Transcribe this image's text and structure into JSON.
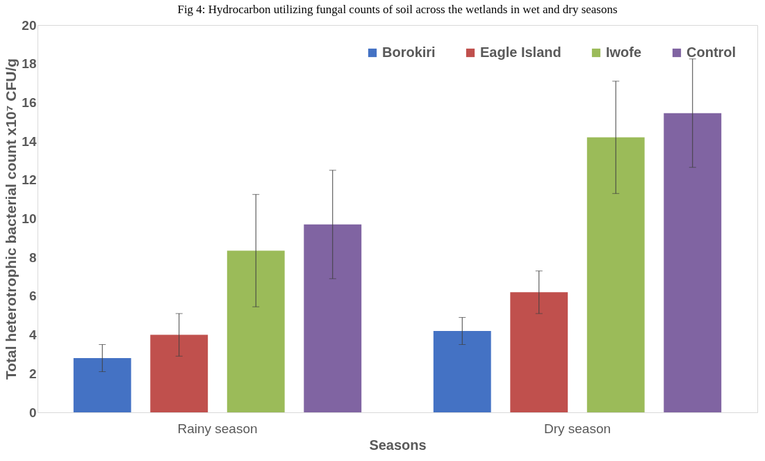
{
  "chart_data": {
    "type": "bar",
    "title": "Fig 4: Hydrocarbon utilizing fungal counts of soil across the wetlands in wet and dry seasons",
    "xlabel": "Seasons",
    "ylabel": "Total heterotrophic bacterial count x10⁷ CFU/g",
    "categories": [
      "Rainy season",
      "Dry season"
    ],
    "series": [
      {
        "name": "Borokiri",
        "color": "#4472c4",
        "values": [
          2.8,
          4.2
        ],
        "errors": [
          0.7,
          0.7
        ]
      },
      {
        "name": "Eagle Island",
        "color": "#c0504d",
        "values": [
          4.0,
          6.2
        ],
        "errors": [
          1.1,
          1.1
        ]
      },
      {
        "name": "Iwofe",
        "color": "#9bbb59",
        "values": [
          8.35,
          14.2
        ],
        "errors": [
          2.9,
          2.9
        ]
      },
      {
        "name": "Control",
        "color": "#8064a2",
        "values": [
          9.7,
          15.45
        ],
        "errors": [
          2.8,
          2.8
        ]
      }
    ],
    "ylim": [
      0,
      20
    ],
    "yticks": [
      0,
      2,
      4,
      6,
      8,
      10,
      12,
      14,
      16,
      18,
      20
    ],
    "grid": false,
    "legend": "top right"
  }
}
